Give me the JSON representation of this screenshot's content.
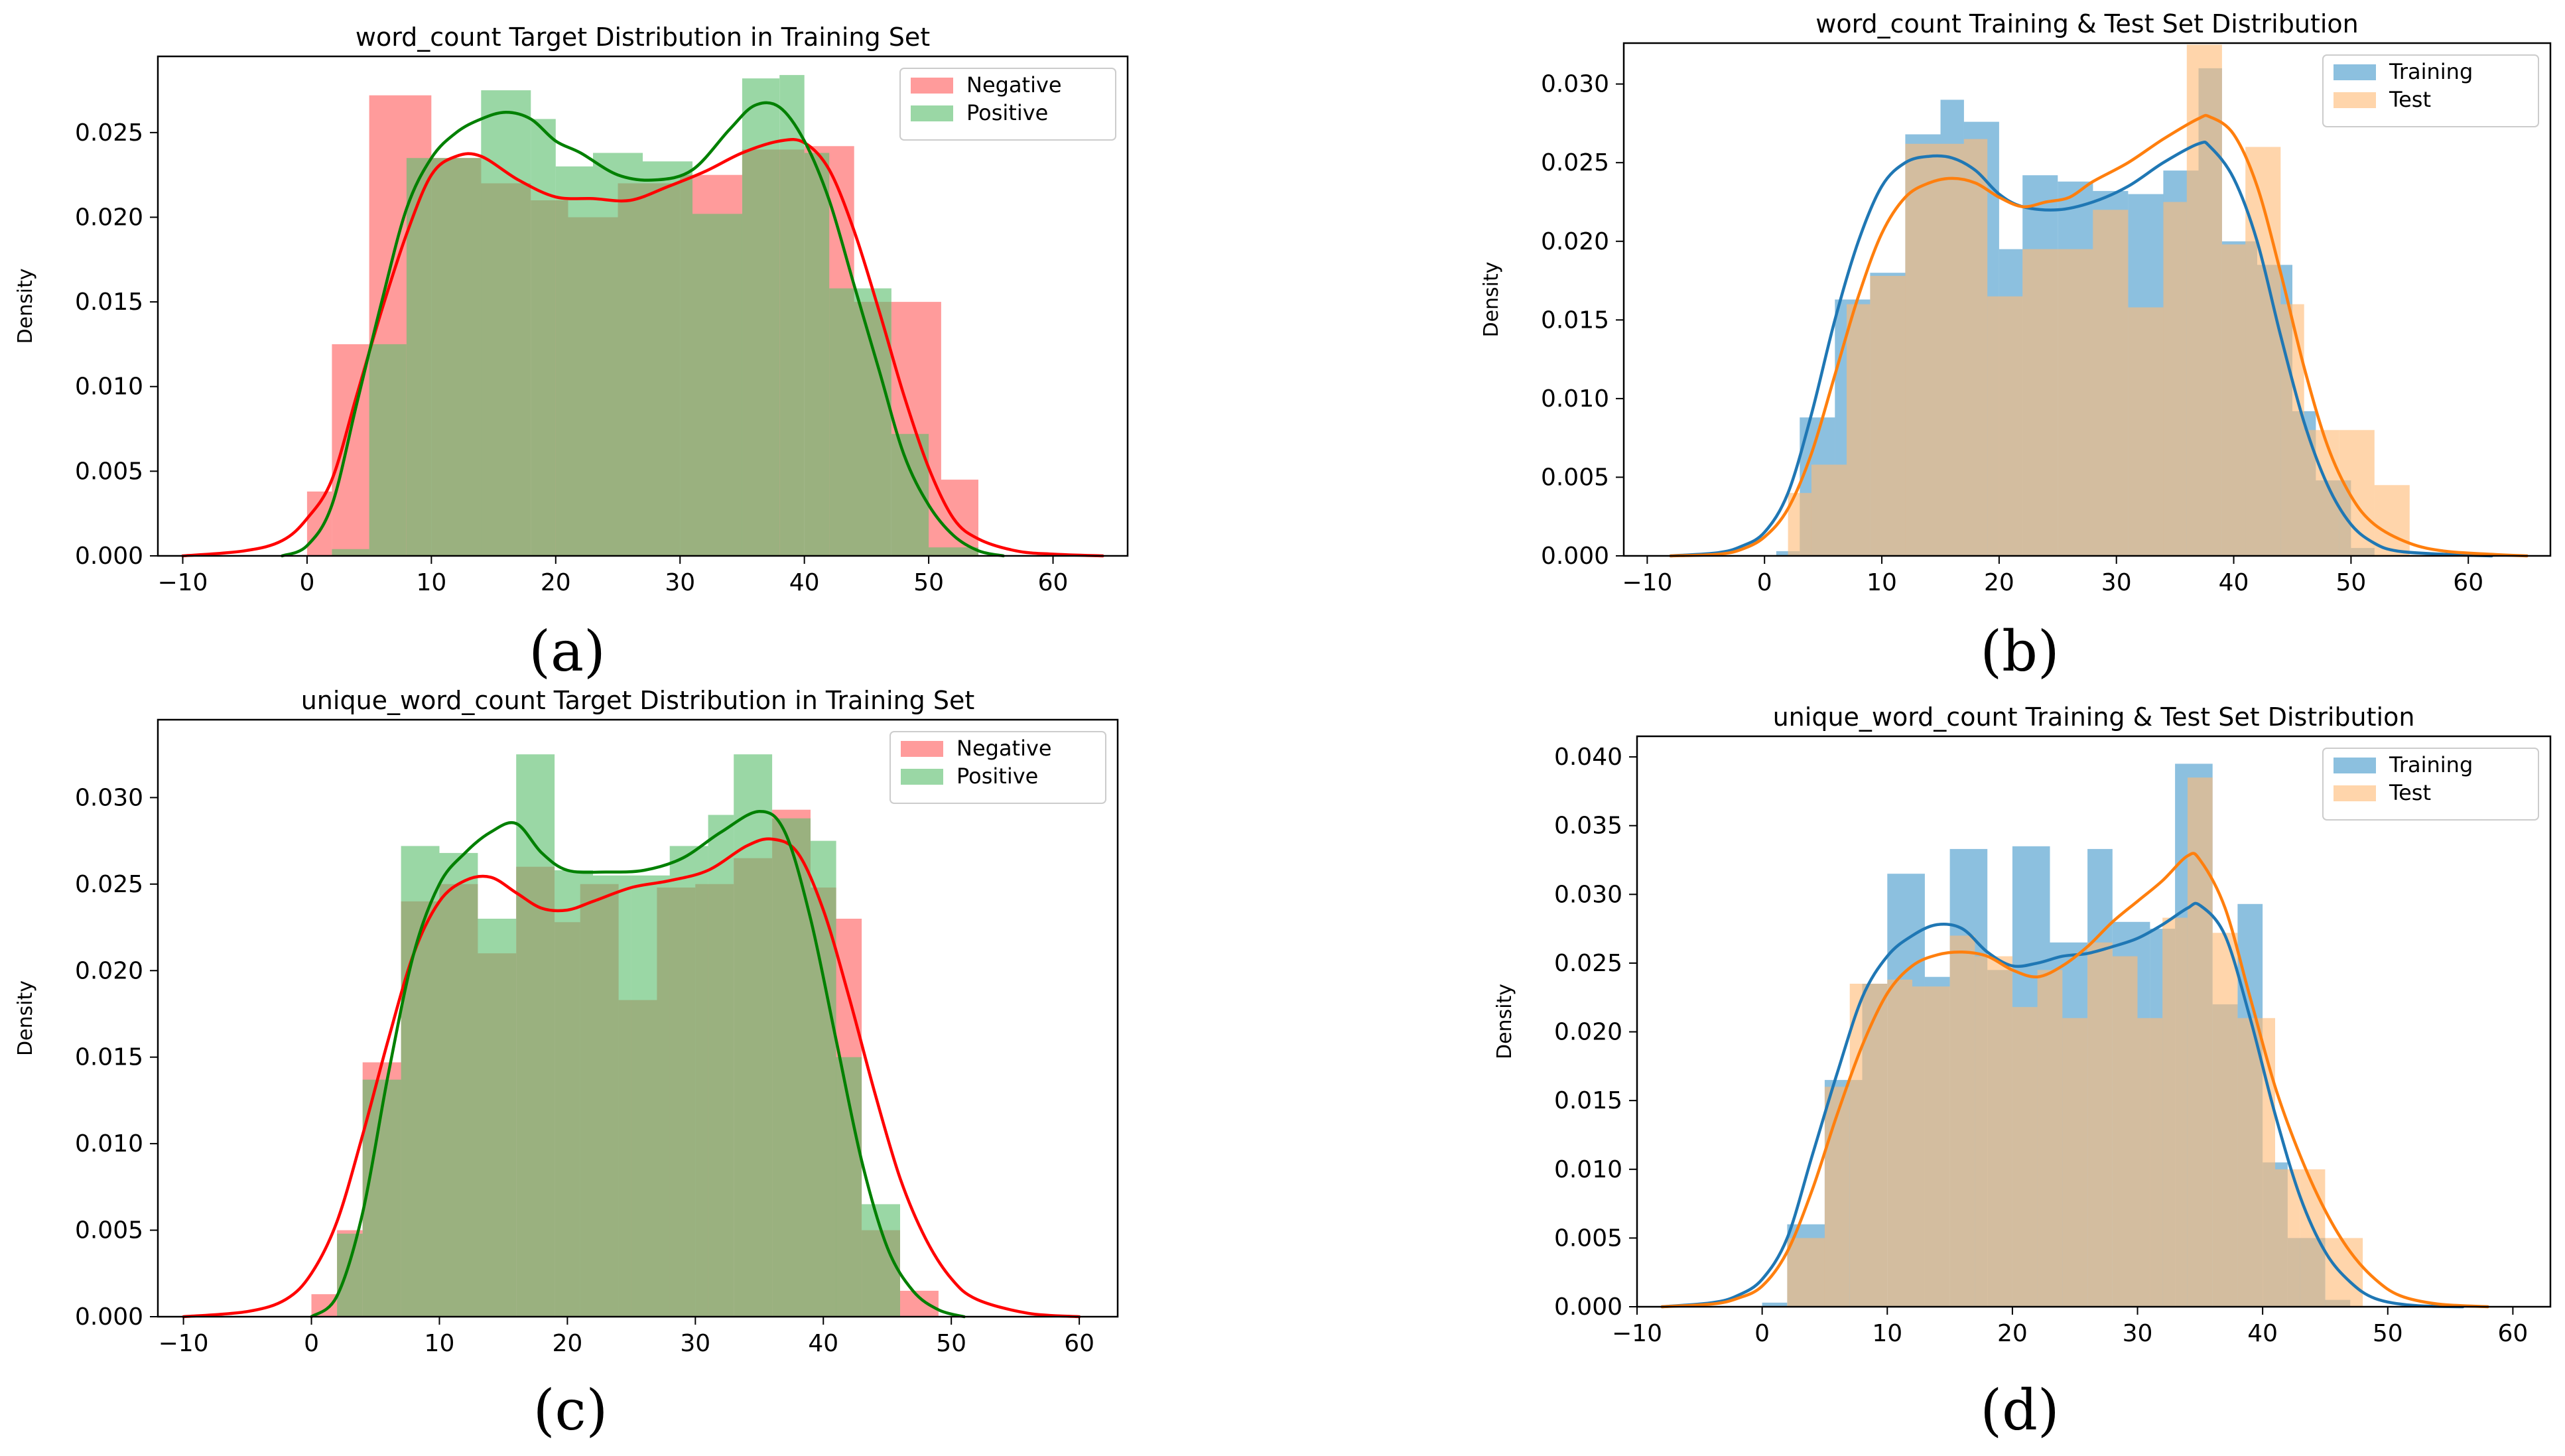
{
  "figure": {
    "panel_labels": [
      "(a)",
      "(b)",
      "(c)",
      "(d)"
    ]
  },
  "chart_data": [
    {
      "type": "histogram-kde",
      "title": "word_count Target Distribution in Training Set",
      "xlabel": "",
      "ylabel": "Density",
      "xlim": [
        -12,
        66
      ],
      "ylim": [
        0,
        0.0295
      ],
      "xticks": [
        -10,
        0,
        10,
        20,
        30,
        40,
        50,
        60
      ],
      "yticks": [
        0.0,
        0.005,
        0.01,
        0.015,
        0.02,
        0.025
      ],
      "xtick_labels": [
        "−10",
        "0",
        "10",
        "20",
        "30",
        "40",
        "50",
        "60"
      ],
      "ytick_labels": [
        "0.000",
        "0.005",
        "0.010",
        "0.015",
        "0.020",
        "0.025"
      ],
      "legend_position": "upper right",
      "series": [
        {
          "name": "Negative",
          "hist_color": "#ff7f7f",
          "kde_color": "#ff0000",
          "bin_edges": [
            0,
            2,
            5,
            10,
            14,
            18,
            21,
            25,
            30,
            35,
            40,
            44,
            47,
            51,
            54
          ],
          "bin_heights": [
            0.0038,
            0.0125,
            0.0272,
            0.0235,
            0.022,
            0.021,
            0.02,
            0.022,
            0.0225,
            0.024,
            0.0242,
            0.015,
            0.015,
            0.0045
          ],
          "kde_x": [
            -10,
            -5,
            -2,
            0,
            2,
            4,
            6,
            8,
            10,
            12,
            14,
            17,
            20,
            23,
            26,
            29,
            32,
            35,
            38,
            40,
            42,
            44,
            46,
            48,
            50,
            52,
            54,
            57,
            60,
            64
          ],
          "kde_y": [
            0.0,
            0.0003,
            0.0009,
            0.0022,
            0.0045,
            0.0095,
            0.0145,
            0.019,
            0.0225,
            0.0236,
            0.0236,
            0.0222,
            0.0212,
            0.0211,
            0.021,
            0.0218,
            0.0227,
            0.0238,
            0.0245,
            0.0244,
            0.0228,
            0.0192,
            0.0145,
            0.0095,
            0.0052,
            0.0022,
            0.001,
            0.0003,
            0.0001,
            0.0
          ]
        },
        {
          "name": "Positive",
          "hist_color": "#5cbf6d",
          "kde_color": "#008000",
          "bin_edges": [
            2,
            5,
            8,
            14,
            18,
            20,
            23,
            27,
            31,
            35,
            38,
            40,
            42,
            47,
            50,
            54
          ],
          "bin_heights": [
            0.0004,
            0.0125,
            0.0235,
            0.0275,
            0.0258,
            0.023,
            0.0238,
            0.0233,
            0.0202,
            0.0282,
            0.0284,
            0.0238,
            0.0158,
            0.0072,
            0.0005
          ],
          "kde_x": [
            -2,
            0,
            2,
            4,
            6,
            8,
            10,
            12,
            14,
            16,
            18,
            20,
            22,
            25,
            28,
            31,
            34,
            36,
            38,
            40,
            42,
            44,
            46,
            48,
            50,
            52,
            54,
            56
          ],
          "kde_y": [
            0.0,
            0.0006,
            0.003,
            0.009,
            0.015,
            0.0205,
            0.0235,
            0.025,
            0.0258,
            0.0262,
            0.0258,
            0.0245,
            0.0238,
            0.0225,
            0.0222,
            0.0228,
            0.0252,
            0.0266,
            0.0265,
            0.0245,
            0.021,
            0.016,
            0.011,
            0.006,
            0.003,
            0.0012,
            0.0003,
            0.0
          ]
        }
      ]
    },
    {
      "type": "histogram-kde",
      "title": "word_count Training & Test Set Distribution",
      "xlabel": "",
      "ylabel": "Density",
      "xlim": [
        -12,
        67
      ],
      "ylim": [
        0,
        0.0326
      ],
      "xticks": [
        -10,
        0,
        10,
        20,
        30,
        40,
        50,
        60
      ],
      "yticks": [
        0.0,
        0.005,
        0.01,
        0.015,
        0.02,
        0.025,
        0.03
      ],
      "xtick_labels": [
        "−10",
        "0",
        "10",
        "20",
        "30",
        "40",
        "50",
        "60"
      ],
      "ytick_labels": [
        "0.000",
        "0.005",
        "0.010",
        "0.015",
        "0.020",
        "0.025",
        "0.030"
      ],
      "legend_position": "upper right",
      "series": [
        {
          "name": "Training",
          "hist_color": "#6baed6",
          "kde_color": "#1f77b4",
          "bin_edges": [
            1,
            3,
            6,
            9,
            12,
            15,
            17,
            20,
            22,
            25,
            28,
            31,
            34,
            37,
            39,
            42,
            45,
            47,
            50,
            52
          ],
          "bin_heights": [
            0.0003,
            0.0088,
            0.0163,
            0.018,
            0.0268,
            0.029,
            0.0276,
            0.0195,
            0.0242,
            0.0238,
            0.0232,
            0.023,
            0.0245,
            0.031,
            0.02,
            0.0185,
            0.0092,
            0.0048,
            0.0005
          ],
          "kde_x": [
            -8,
            -4,
            -2,
            0,
            2,
            4,
            6,
            8,
            10,
            12,
            14,
            16,
            18,
            20,
            22,
            25,
            28,
            31,
            34,
            37,
            38,
            40,
            42,
            44,
            46,
            48,
            50,
            52,
            54,
            58,
            62
          ],
          "kde_y": [
            0.0,
            0.0002,
            0.0006,
            0.0015,
            0.004,
            0.009,
            0.015,
            0.02,
            0.0235,
            0.025,
            0.0254,
            0.0253,
            0.0245,
            0.023,
            0.0222,
            0.022,
            0.0225,
            0.0235,
            0.025,
            0.0262,
            0.026,
            0.024,
            0.02,
            0.014,
            0.0085,
            0.0045,
            0.002,
            0.0008,
            0.0003,
            0.0001,
            0.0
          ]
        },
        {
          "name": "Test",
          "hist_color": "#ffbb78",
          "kde_color": "#ff7f0e",
          "bin_edges": [
            2,
            4,
            7,
            9,
            12,
            15,
            17,
            19,
            22,
            25,
            28,
            31,
            34,
            36,
            39,
            41,
            44,
            46,
            49,
            52,
            55
          ],
          "bin_heights": [
            0.004,
            0.0058,
            0.016,
            0.0178,
            0.0262,
            0.0262,
            0.0265,
            0.0165,
            0.0195,
            0.0195,
            0.022,
            0.0158,
            0.0225,
            0.0325,
            0.0198,
            0.026,
            0.016,
            0.008,
            0.008,
            0.0045
          ],
          "kde_x": [
            -8,
            -4,
            -2,
            0,
            2,
            4,
            6,
            8,
            10,
            12,
            14,
            16,
            18,
            20,
            22,
            24,
            26,
            28,
            31,
            34,
            37,
            38,
            40,
            42,
            44,
            46,
            48,
            50,
            52,
            55,
            58,
            62,
            65
          ],
          "kde_y": [
            0.0,
            0.0001,
            0.0004,
            0.0012,
            0.003,
            0.0065,
            0.0115,
            0.0165,
            0.0205,
            0.0228,
            0.0237,
            0.024,
            0.0237,
            0.0228,
            0.0222,
            0.0225,
            0.0228,
            0.0238,
            0.025,
            0.0265,
            0.0278,
            0.0279,
            0.0268,
            0.0235,
            0.018,
            0.012,
            0.007,
            0.0038,
            0.002,
            0.0008,
            0.0003,
            0.0001,
            0.0
          ]
        }
      ]
    },
    {
      "type": "histogram-kde",
      "title": "unique_word_count Target Distribution in Training Set",
      "xlabel": "",
      "ylabel": "Density",
      "xlim": [
        -12,
        63
      ],
      "ylim": [
        0,
        0.0345
      ],
      "xticks": [
        -10,
        0,
        10,
        20,
        30,
        40,
        50,
        60
      ],
      "yticks": [
        0.0,
        0.005,
        0.01,
        0.015,
        0.02,
        0.025,
        0.03
      ],
      "xtick_labels": [
        "−10",
        "0",
        "10",
        "20",
        "30",
        "40",
        "50",
        "60"
      ],
      "ytick_labels": [
        "0.000",
        "0.005",
        "0.010",
        "0.015",
        "0.020",
        "0.025",
        "0.030"
      ],
      "legend_position": "upper right",
      "series": [
        {
          "name": "Negative",
          "hist_color": "#ff7f7f",
          "kde_color": "#ff0000",
          "bin_edges": [
            0,
            2,
            4,
            7,
            10,
            13,
            16,
            19,
            21,
            24,
            27,
            30,
            33,
            36,
            39,
            41,
            43,
            46,
            49
          ],
          "bin_heights": [
            0.0013,
            0.005,
            0.0147,
            0.024,
            0.025,
            0.021,
            0.026,
            0.0228,
            0.025,
            0.0183,
            0.0248,
            0.025,
            0.0265,
            0.0293,
            0.0248,
            0.023,
            0.005,
            0.0015
          ],
          "kde_x": [
            -10,
            -5,
            -2,
            0,
            2,
            4,
            6,
            8,
            10,
            12,
            14,
            16,
            18,
            20,
            22,
            25,
            28,
            31,
            34,
            36,
            38,
            40,
            42,
            44,
            46,
            48,
            50,
            52,
            56,
            60
          ],
          "kde_y": [
            0.0,
            0.0003,
            0.001,
            0.0025,
            0.0055,
            0.0105,
            0.016,
            0.021,
            0.024,
            0.0252,
            0.0254,
            0.0245,
            0.0236,
            0.0235,
            0.024,
            0.0248,
            0.0252,
            0.0258,
            0.0272,
            0.0276,
            0.0268,
            0.0235,
            0.0185,
            0.013,
            0.008,
            0.0045,
            0.0022,
            0.001,
            0.0002,
            0.0
          ]
        },
        {
          "name": "Positive",
          "hist_color": "#5cbf6d",
          "kde_color": "#008000",
          "bin_edges": [
            2,
            4,
            7,
            10,
            13,
            16,
            19,
            22,
            25,
            28,
            31,
            33,
            36,
            39,
            41,
            43,
            46
          ],
          "bin_heights": [
            0.0048,
            0.0137,
            0.0272,
            0.0268,
            0.023,
            0.0325,
            0.0258,
            0.0255,
            0.0255,
            0.0272,
            0.029,
            0.0325,
            0.0288,
            0.0275,
            0.015,
            0.0065
          ],
          "kde_x": [
            0,
            2,
            4,
            6,
            8,
            10,
            12,
            14,
            16,
            18,
            20,
            23,
            26,
            29,
            32,
            35,
            37,
            39,
            41,
            43,
            45,
            47,
            49,
            51
          ],
          "kde_y": [
            0.0,
            0.0012,
            0.006,
            0.014,
            0.021,
            0.025,
            0.0268,
            0.028,
            0.0285,
            0.0268,
            0.0258,
            0.0257,
            0.0258,
            0.0265,
            0.028,
            0.0292,
            0.028,
            0.023,
            0.016,
            0.009,
            0.004,
            0.0015,
            0.0004,
            0.0
          ]
        }
      ]
    },
    {
      "type": "histogram-kde",
      "title": "unique_word_count Training & Test Set Distribution",
      "xlabel": "",
      "ylabel": "Density",
      "xlim": [
        -10,
        63
      ],
      "ylim": [
        0,
        0.0415
      ],
      "xticks": [
        -10,
        0,
        10,
        20,
        30,
        40,
        50,
        60
      ],
      "yticks": [
        0.0,
        0.005,
        0.01,
        0.015,
        0.02,
        0.025,
        0.03,
        0.035,
        0.04
      ],
      "xtick_labels": [
        "−10",
        "0",
        "10",
        "20",
        "30",
        "40",
        "50",
        "60"
      ],
      "ytick_labels": [
        "0.000",
        "0.005",
        "0.010",
        "0.015",
        "0.020",
        "0.025",
        "0.030",
        "0.035",
        "0.040"
      ],
      "legend_position": "upper right",
      "series": [
        {
          "name": "Training",
          "hist_color": "#6baed6",
          "kde_color": "#1f77b4",
          "bin_edges": [
            0,
            2,
            5,
            8,
            10,
            13,
            15,
            18,
            20,
            23,
            26,
            28,
            31,
            33,
            36,
            38,
            40,
            42,
            45,
            47
          ],
          "bin_heights": [
            0.0003,
            0.006,
            0.0165,
            0.0235,
            0.0315,
            0.024,
            0.0333,
            0.0245,
            0.0335,
            0.0265,
            0.0333,
            0.028,
            0.0275,
            0.0395,
            0.022,
            0.0293,
            0.0105,
            0.005,
            0.0005
          ],
          "kde_x": [
            -8,
            -4,
            -2,
            0,
            2,
            4,
            6,
            8,
            10,
            12,
            14,
            16,
            18,
            20,
            22,
            24,
            26,
            28,
            30,
            32,
            34,
            35,
            37,
            39,
            41,
            43,
            45,
            47,
            49,
            52,
            56
          ],
          "kde_y": [
            0.0,
            0.0003,
            0.0008,
            0.002,
            0.005,
            0.011,
            0.017,
            0.0225,
            0.0255,
            0.027,
            0.0278,
            0.0275,
            0.0258,
            0.0248,
            0.025,
            0.0255,
            0.0257,
            0.0262,
            0.0268,
            0.0278,
            0.029,
            0.0292,
            0.027,
            0.021,
            0.014,
            0.008,
            0.004,
            0.0018,
            0.0006,
            0.0001,
            0.0
          ]
        },
        {
          "name": "Test",
          "hist_color": "#ffbb78",
          "kde_color": "#ff7f0e",
          "bin_edges": [
            2,
            5,
            7,
            10,
            12,
            15,
            17,
            20,
            22,
            24,
            26,
            28,
            30,
            32,
            34,
            36,
            38,
            41,
            43,
            45,
            48
          ],
          "bin_heights": [
            0.005,
            0.016,
            0.0235,
            0.0238,
            0.0233,
            0.027,
            0.0255,
            0.0218,
            0.0245,
            0.021,
            0.0265,
            0.0255,
            0.021,
            0.0283,
            0.0385,
            0.0272,
            0.021,
            0.01,
            0.01,
            0.005
          ],
          "kde_x": [
            -8,
            -4,
            -2,
            0,
            2,
            4,
            6,
            8,
            10,
            12,
            14,
            16,
            18,
            20,
            22,
            24,
            26,
            28,
            30,
            32,
            34,
            35,
            37,
            39,
            41,
            43,
            45,
            47,
            49,
            51,
            54,
            58
          ],
          "kde_y": [
            0.0,
            0.0002,
            0.0006,
            0.0015,
            0.004,
            0.0085,
            0.014,
            0.019,
            0.0228,
            0.0248,
            0.0256,
            0.0258,
            0.0255,
            0.0245,
            0.024,
            0.0248,
            0.0262,
            0.028,
            0.0295,
            0.031,
            0.0328,
            0.0325,
            0.029,
            0.0225,
            0.016,
            0.011,
            0.007,
            0.004,
            0.002,
            0.0008,
            0.0002,
            0.0
          ]
        }
      ]
    }
  ]
}
